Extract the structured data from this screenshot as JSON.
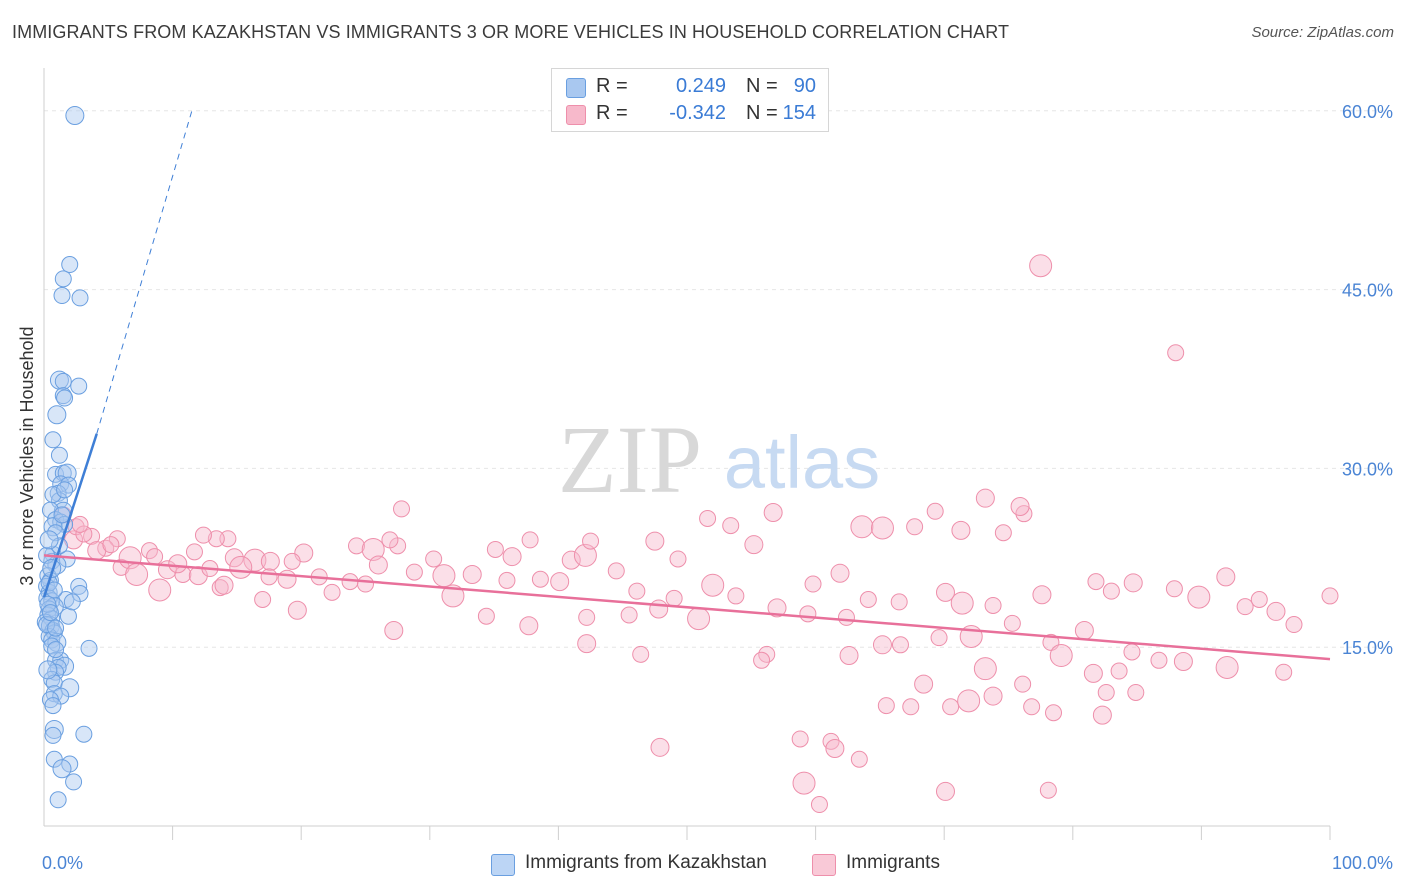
{
  "title": "IMMIGRANTS FROM KAZAKHSTAN VS IMMIGRANTS 3 OR MORE VEHICLES IN HOUSEHOLD CORRELATION CHART",
  "source": "Source: ZipAtlas.com",
  "watermark": {
    "zip": "ZIP",
    "atlas": "atlas"
  },
  "legend": {
    "rows": [
      {
        "r_label": "R =",
        "r_value": "0.249",
        "n_label": "N =",
        "n_value": "90",
        "color": "#a9c8f0",
        "stroke": "#6a9fe0"
      },
      {
        "r_label": "R =",
        "r_value": "-0.342",
        "n_label": "N =",
        "n_value": "154",
        "color": "#f7b9cb",
        "stroke": "#ee8fab"
      }
    ]
  },
  "bottom_legend": [
    {
      "label": "Immigrants from Kazakhstan",
      "color": "#bcd5f5",
      "stroke": "#6a9fe0"
    },
    {
      "label": "Immigrants",
      "color": "#f9c9d7",
      "stroke": "#ee8fab"
    }
  ],
  "chart_data": {
    "type": "scatter",
    "title": "IMMIGRANTS FROM KAZAKHSTAN VS IMMIGRANTS 3 OR MORE VEHICLES IN HOUSEHOLD CORRELATION CHART",
    "xlabel": "",
    "ylabel": "3 or more Vehicles in Household",
    "xlim": [
      0,
      100
    ],
    "ylim": [
      0,
      63
    ],
    "x_tick_labels": [
      {
        "value": 0,
        "label": "0.0%"
      },
      {
        "value": 100,
        "label": "100.0%"
      }
    ],
    "y_tick_labels": [
      {
        "value": 15,
        "label": "15.0%"
      },
      {
        "value": 30,
        "label": "30.0%"
      },
      {
        "value": 45,
        "label": "45.0%"
      },
      {
        "value": 60,
        "label": "60.0%"
      }
    ],
    "x_minor_ticks": [
      10,
      20,
      30,
      40,
      50,
      60,
      70,
      80,
      90,
      100
    ],
    "grid": true,
    "legend_position": "top-center",
    "colors": {
      "blue": "#3f7fd6",
      "pink": "#e8709a",
      "blue_fill": "#a9c8f0",
      "pink_fill": "#f7b9cb"
    },
    "series": [
      {
        "name": "Immigrants from Kazakhstan",
        "color": "#3f7fd6",
        "trend": {
          "x": [
            0,
            4.1
          ],
          "y": [
            19.2,
            32.9
          ],
          "extended_x": [
            4.1,
            11.5
          ],
          "extended_y": [
            32.9,
            60
          ]
        },
        "points": [
          [
            2.4,
            59.6
          ],
          [
            2.0,
            47.1
          ],
          [
            1.5,
            45.9
          ],
          [
            1.4,
            44.5
          ],
          [
            2.8,
            44.3
          ],
          [
            1.2,
            37.4
          ],
          [
            1.5,
            37.3
          ],
          [
            2.7,
            36.9
          ],
          [
            1.5,
            36.1
          ],
          [
            1.6,
            35.9
          ],
          [
            1.0,
            34.5
          ],
          [
            0.7,
            32.4
          ],
          [
            1.2,
            31.1
          ],
          [
            0.9,
            29.5
          ],
          [
            1.5,
            29.6
          ],
          [
            1.8,
            29.6
          ],
          [
            1.3,
            28.7
          ],
          [
            1.9,
            28.6
          ],
          [
            1.1,
            27.9
          ],
          [
            1.2,
            27.3
          ],
          [
            1.5,
            26.4
          ],
          [
            0.5,
            26.5
          ],
          [
            0.9,
            25.7
          ],
          [
            1.3,
            25.5
          ],
          [
            1.6,
            25.3
          ],
          [
            0.7,
            25.1
          ],
          [
            0.9,
            24.6
          ],
          [
            0.7,
            22.8
          ],
          [
            1.8,
            22.4
          ],
          [
            0.6,
            22.2
          ],
          [
            1.0,
            21.9
          ],
          [
            0.3,
            21.0
          ],
          [
            0.5,
            20.6
          ],
          [
            0.2,
            20.1
          ],
          [
            0.4,
            19.6
          ],
          [
            0.3,
            19.1
          ],
          [
            1.7,
            19.0
          ],
          [
            2.7,
            20.1
          ],
          [
            2.8,
            19.5
          ],
          [
            0.6,
            18.9
          ],
          [
            0.8,
            18.4
          ],
          [
            0.4,
            18.2
          ],
          [
            0.3,
            17.7
          ],
          [
            0.6,
            17.4
          ],
          [
            0.1,
            17.1
          ],
          [
            0.5,
            16.8
          ],
          [
            0.7,
            16.4
          ],
          [
            0.8,
            16.2
          ],
          [
            0.4,
            15.9
          ],
          [
            0.6,
            15.6
          ],
          [
            1.0,
            15.4
          ],
          [
            0.6,
            15.1
          ],
          [
            3.5,
            14.9
          ],
          [
            0.9,
            13.9
          ],
          [
            1.3,
            13.9
          ],
          [
            1.6,
            13.4
          ],
          [
            1.1,
            13.3
          ],
          [
            0.9,
            12.9
          ],
          [
            0.6,
            12.3
          ],
          [
            0.8,
            12.0
          ],
          [
            2.0,
            11.6
          ],
          [
            0.8,
            11.1
          ],
          [
            1.3,
            10.9
          ],
          [
            0.5,
            10.6
          ],
          [
            0.7,
            10.1
          ],
          [
            0.8,
            8.1
          ],
          [
            3.1,
            7.7
          ],
          [
            0.7,
            7.6
          ],
          [
            0.8,
            5.6
          ],
          [
            2.0,
            5.2
          ],
          [
            1.4,
            4.8
          ],
          [
            2.3,
            3.7
          ],
          [
            1.1,
            2.2
          ],
          [
            0.2,
            22.7
          ],
          [
            0.4,
            20.4
          ],
          [
            0.6,
            21.6
          ],
          [
            0.3,
            18.6
          ],
          [
            1.9,
            17.6
          ],
          [
            0.2,
            16.9
          ],
          [
            0.9,
            14.8
          ],
          [
            0.3,
            13.1
          ],
          [
            0.5,
            17.9
          ],
          [
            0.8,
            19.8
          ],
          [
            1.2,
            23.5
          ],
          [
            1.4,
            26.1
          ],
          [
            0.4,
            24.0
          ],
          [
            0.7,
            27.8
          ],
          [
            1.6,
            28.2
          ],
          [
            0.9,
            16.6
          ],
          [
            2.2,
            18.8
          ]
        ]
      },
      {
        "name": "Immigrants",
        "color": "#e8709a",
        "trend": {
          "x": [
            0,
            100
          ],
          "y": [
            22.7,
            14.0
          ]
        },
        "points": [
          [
            77.5,
            47.0
          ],
          [
            88.0,
            39.7
          ],
          [
            27.8,
            26.6
          ],
          [
            56.7,
            26.3
          ],
          [
            53.4,
            25.2
          ],
          [
            69.3,
            26.4
          ],
          [
            73.2,
            27.5
          ],
          [
            63.6,
            25.1
          ],
          [
            76.2,
            26.2
          ],
          [
            75.9,
            26.8
          ],
          [
            14.3,
            24.1
          ],
          [
            13.4,
            24.1
          ],
          [
            14.8,
            22.5
          ],
          [
            12.4,
            24.4
          ],
          [
            16.4,
            22.3
          ],
          [
            20.2,
            22.9
          ],
          [
            11.7,
            23.0
          ],
          [
            19.3,
            22.2
          ],
          [
            17.6,
            22.2
          ],
          [
            24.3,
            23.5
          ],
          [
            27.5,
            23.5
          ],
          [
            25.6,
            23.2
          ],
          [
            26.9,
            24.0
          ],
          [
            30.3,
            22.4
          ],
          [
            36.4,
            22.6
          ],
          [
            35.1,
            23.2
          ],
          [
            37.8,
            24.0
          ],
          [
            41.0,
            22.3
          ],
          [
            42.1,
            22.7
          ],
          [
            42.5,
            23.9
          ],
          [
            47.5,
            23.9
          ],
          [
            49.3,
            22.4
          ],
          [
            51.6,
            25.8
          ],
          [
            55.2,
            23.6
          ],
          [
            67.7,
            25.1
          ],
          [
            65.2,
            25.0
          ],
          [
            71.3,
            24.8
          ],
          [
            74.6,
            24.6
          ],
          [
            8.2,
            23.1
          ],
          [
            9.6,
            21.5
          ],
          [
            6.0,
            21.7
          ],
          [
            5.7,
            24.1
          ],
          [
            6.7,
            22.5
          ],
          [
            4.8,
            23.3
          ],
          [
            3.7,
            24.3
          ],
          [
            2.3,
            24.0
          ],
          [
            2.5,
            25.1
          ],
          [
            10.8,
            21.1
          ],
          [
            12.0,
            21.0
          ],
          [
            15.3,
            21.7
          ],
          [
            17.5,
            20.9
          ],
          [
            18.9,
            20.7
          ],
          [
            21.4,
            20.9
          ],
          [
            23.8,
            20.5
          ],
          [
            26.0,
            21.9
          ],
          [
            28.8,
            21.3
          ],
          [
            31.1,
            21.0
          ],
          [
            33.3,
            21.1
          ],
          [
            36.0,
            20.6
          ],
          [
            38.6,
            20.7
          ],
          [
            40.1,
            20.5
          ],
          [
            44.5,
            21.4
          ],
          [
            46.1,
            19.7
          ],
          [
            52.0,
            20.2
          ],
          [
            53.8,
            19.3
          ],
          [
            59.8,
            20.3
          ],
          [
            61.9,
            21.2
          ],
          [
            64.1,
            19.0
          ],
          [
            66.5,
            18.8
          ],
          [
            70.1,
            19.6
          ],
          [
            71.4,
            18.7
          ],
          [
            73.8,
            18.5
          ],
          [
            77.6,
            19.4
          ],
          [
            81.8,
            20.5
          ],
          [
            83.0,
            19.7
          ],
          [
            84.7,
            20.4
          ],
          [
            87.9,
            19.9
          ],
          [
            89.8,
            19.2
          ],
          [
            91.9,
            20.9
          ],
          [
            93.4,
            18.4
          ],
          [
            94.5,
            19.0
          ],
          [
            95.8,
            18.0
          ],
          [
            97.2,
            16.9
          ],
          [
            100.0,
            19.3
          ],
          [
            9.0,
            19.8
          ],
          [
            13.7,
            20.0
          ],
          [
            17.0,
            19.0
          ],
          [
            19.7,
            18.1
          ],
          [
            22.4,
            19.6
          ],
          [
            25.0,
            20.3
          ],
          [
            27.2,
            16.4
          ],
          [
            31.8,
            19.3
          ],
          [
            34.4,
            17.6
          ],
          [
            37.7,
            16.8
          ],
          [
            42.2,
            17.5
          ],
          [
            45.5,
            17.7
          ],
          [
            47.8,
            18.2
          ],
          [
            49.0,
            19.1
          ],
          [
            50.9,
            17.4
          ],
          [
            57.0,
            18.3
          ],
          [
            59.4,
            17.8
          ],
          [
            62.4,
            17.5
          ],
          [
            65.2,
            15.2
          ],
          [
            66.6,
            15.2
          ],
          [
            69.6,
            15.8
          ],
          [
            72.1,
            15.9
          ],
          [
            75.3,
            17.0
          ],
          [
            78.3,
            15.4
          ],
          [
            80.9,
            16.4
          ],
          [
            84.6,
            14.6
          ],
          [
            86.7,
            13.9
          ],
          [
            88.6,
            13.8
          ],
          [
            92.0,
            13.3
          ],
          [
            96.4,
            12.9
          ],
          [
            62.6,
            14.3
          ],
          [
            56.2,
            14.4
          ],
          [
            46.4,
            14.4
          ],
          [
            42.2,
            15.3
          ],
          [
            55.8,
            13.9
          ],
          [
            79.1,
            14.3
          ],
          [
            81.6,
            12.8
          ],
          [
            76.1,
            11.9
          ],
          [
            82.6,
            11.2
          ],
          [
            73.8,
            10.9
          ],
          [
            78.5,
            9.5
          ],
          [
            70.5,
            10.0
          ],
          [
            71.9,
            10.5
          ],
          [
            67.4,
            10.0
          ],
          [
            76.8,
            10.0
          ],
          [
            82.3,
            9.3
          ],
          [
            84.9,
            11.2
          ],
          [
            83.6,
            13.0
          ],
          [
            68.4,
            11.9
          ],
          [
            73.2,
            13.2
          ],
          [
            65.5,
            10.1
          ],
          [
            47.9,
            6.6
          ],
          [
            58.8,
            7.3
          ],
          [
            61.2,
            7.1
          ],
          [
            61.5,
            6.5
          ],
          [
            63.4,
            5.6
          ],
          [
            59.1,
            3.6
          ],
          [
            70.1,
            2.9
          ],
          [
            78.1,
            3.0
          ],
          [
            60.3,
            1.8
          ],
          [
            4.1,
            23.1
          ],
          [
            5.2,
            23.6
          ],
          [
            3.1,
            24.5
          ],
          [
            7.2,
            21.1
          ],
          [
            8.6,
            22.6
          ],
          [
            2.8,
            25.3
          ],
          [
            10.4,
            22.0
          ],
          [
            12.9,
            21.6
          ],
          [
            1.5,
            26.1
          ],
          [
            14.0,
            20.2
          ]
        ]
      }
    ]
  }
}
